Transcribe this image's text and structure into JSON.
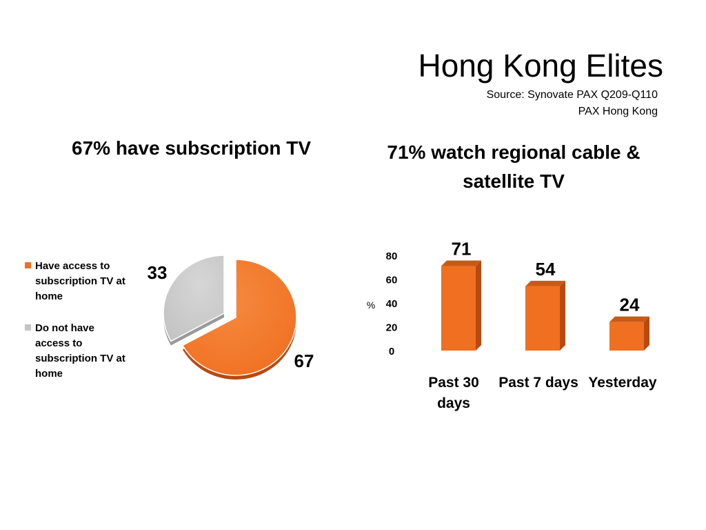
{
  "header": {
    "title": "Hong Kong Elites",
    "source_line1": "Source: Synovate PAX Q209-Q110",
    "source_line2": "PAX Hong Kong"
  },
  "colors": {
    "orange": "#F07021",
    "orange_dark": "#B84A10",
    "orange_light": "#F58A40",
    "grey": "#C4C4C4",
    "grey_dark": "#9A9A9A"
  },
  "chart_data": [
    {
      "type": "pie",
      "title": "67% have subscription TV",
      "legend_position": "left",
      "slices": [
        {
          "label": "Have access to subscription TV at home",
          "value": 67,
          "data_label": "67",
          "color": "#F07021"
        },
        {
          "label": "Do not have access to subscription TV at home",
          "value": 33,
          "data_label": "33",
          "color": "#C4C4C4"
        }
      ]
    },
    {
      "type": "bar",
      "title": "71% watch regional cable & satellite TV",
      "categories": [
        "Past 30 days",
        "Past 7 days",
        "Yesterday"
      ],
      "values": [
        71,
        54,
        24
      ],
      "data_labels": [
        "71",
        "54",
        "24"
      ],
      "ylabel": "%",
      "ylim": [
        0,
        80
      ],
      "yticks": [
        "0",
        "20",
        "40",
        "60",
        "80"
      ],
      "grid": false,
      "color": "#F07021"
    }
  ]
}
